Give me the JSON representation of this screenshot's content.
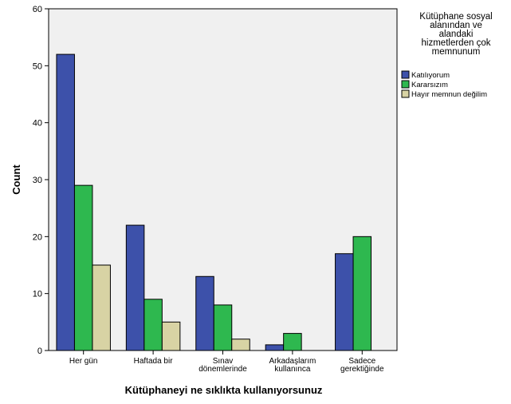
{
  "chart_data": {
    "type": "bar",
    "xlabel": "Kütüphaneyi ne sıklıkta kullanıyorsunuz",
    "ylabel": "Count",
    "ylim": [
      0,
      60
    ],
    "yticks": [
      0,
      10,
      20,
      30,
      40,
      50,
      60
    ],
    "grid": false,
    "legend_position": "right",
    "legend_title_lines": [
      "Kütüphane sosyal",
      "alanından ve",
      "alandaki",
      "hizmetlerden çok",
      "memnunum"
    ],
    "categories": [
      [
        "Her gün"
      ],
      [
        "Haftada bir"
      ],
      [
        "Sınav",
        "dönemlerinde"
      ],
      [
        "Arkadaşlarım",
        "kullanınca"
      ],
      [
        "Sadece",
        "gerektiğinde"
      ]
    ],
    "series": [
      {
        "name": "Katılıyorum",
        "color": "#3d51aa",
        "values": [
          52,
          22,
          13,
          1,
          17
        ]
      },
      {
        "name": "Kararsızım",
        "color": "#2eb84f",
        "values": [
          29,
          9,
          8,
          3,
          20
        ]
      },
      {
        "name": "Hayır memnun değilim",
        "color": "#d8d3a4",
        "values": [
          15,
          5,
          2,
          0,
          0
        ]
      }
    ],
    "plot_background": "#f0f0f0"
  }
}
